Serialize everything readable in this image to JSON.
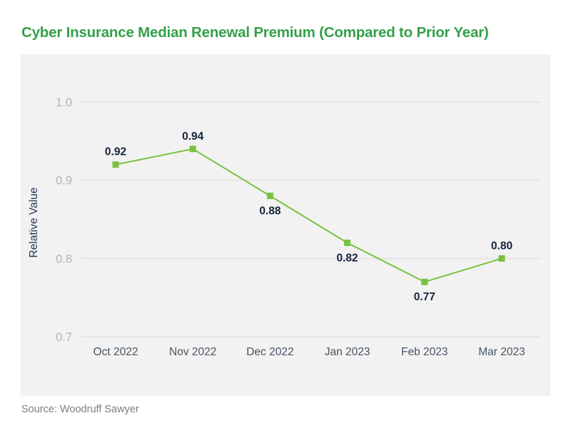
{
  "title": "Cyber Insurance Median Renewal Premium (Compared to Prior Year)",
  "source": "Source: Woodruff Sawyer",
  "colors": {
    "title_green": "#34a04a",
    "line_green": "#7ac142",
    "data_label_navy": "#16243d",
    "axis_title_navy": "#25355a",
    "x_tick_color": "#475462",
    "y_tick_color": "#b3b3b3",
    "plot_background": "#f2f2f2",
    "gridline": "#e1e1e1",
    "source_gray": "#7d7d7d"
  },
  "chart_data": {
    "type": "line",
    "title": "Cyber Insurance Median Renewal Premium (Compared to Prior Year)",
    "categories": [
      "Oct 2022",
      "Nov 2022",
      "Dec 2022",
      "Jan 2023",
      "Feb 2023",
      "Mar 2023"
    ],
    "values": [
      0.92,
      0.94,
      0.88,
      0.82,
      0.77,
      0.8
    ],
    "value_labels": [
      "0.92",
      "0.94",
      "0.88",
      "0.82",
      "0.77",
      "0.80"
    ],
    "label_positions": [
      "above",
      "above",
      "below",
      "below",
      "below",
      "above"
    ],
    "xlabel": "",
    "ylabel": "Relative Value",
    "ylim": [
      0.7,
      1.0
    ],
    "yticks": [
      1.0,
      0.9,
      0.8,
      0.7
    ],
    "ytick_labels": [
      "1.0",
      "0.9",
      "0.8",
      "0.7"
    ],
    "grid": true,
    "legend": false,
    "marker": "square",
    "source": "Woodruff Sawyer"
  }
}
